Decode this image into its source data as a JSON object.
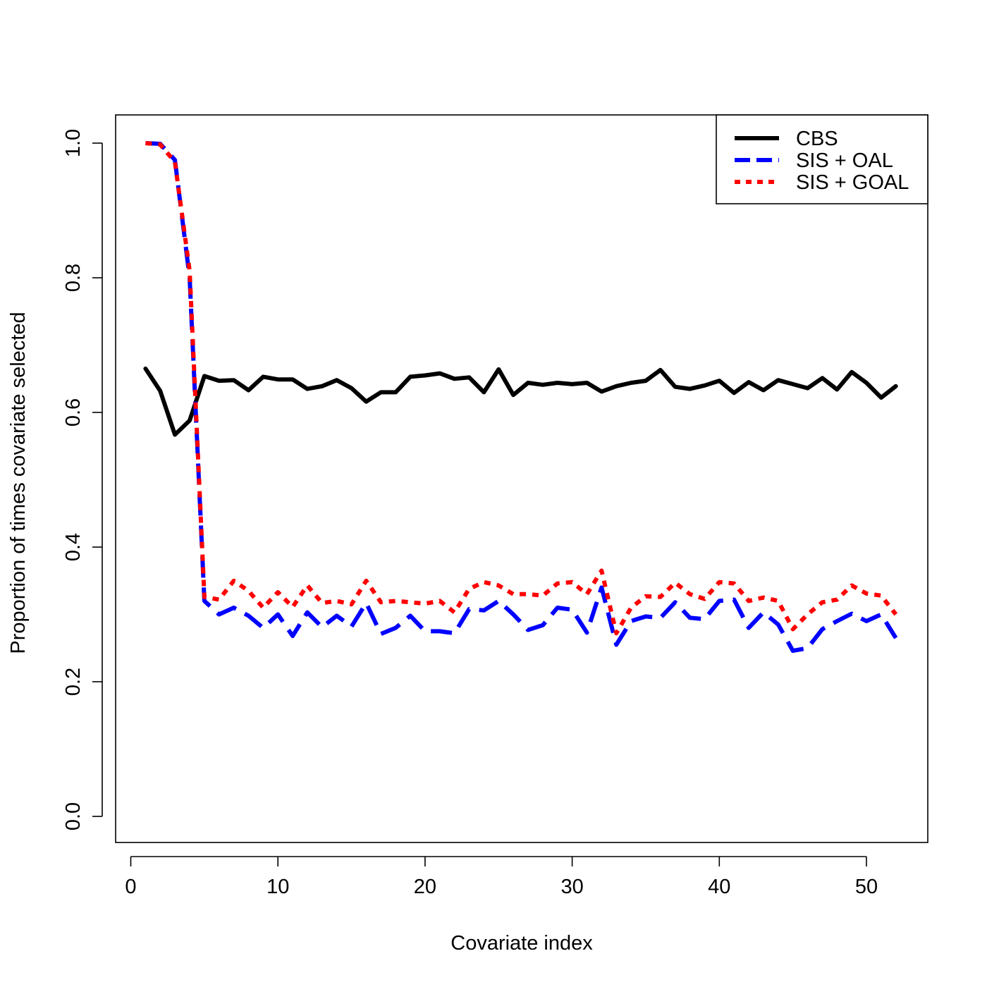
{
  "chart_data": {
    "type": "line",
    "title": "",
    "xlabel": "Covariate index",
    "ylabel": "Proportion of times covariate selected",
    "xlim": [
      0,
      53
    ],
    "ylim": [
      0,
      1.05
    ],
    "x_ticks": [
      "0",
      "10",
      "20",
      "30",
      "40",
      "50"
    ],
    "y_ticks": [
      "0.0",
      "0.2",
      "0.4",
      "0.6",
      "0.8",
      "1.0"
    ],
    "grid": false,
    "legend_position": "top-right",
    "x": [
      1,
      2,
      3,
      4,
      5,
      6,
      7,
      8,
      9,
      10,
      11,
      12,
      13,
      14,
      15,
      16,
      17,
      18,
      19,
      20,
      21,
      22,
      23,
      24,
      25,
      26,
      27,
      28,
      29,
      30,
      31,
      32,
      33,
      34,
      35,
      36,
      37,
      38,
      39,
      40,
      41,
      42,
      43,
      44,
      45,
      46,
      47,
      48,
      49,
      50,
      51,
      52
    ],
    "series": [
      {
        "name": "CBS",
        "color": "#000000",
        "style": "solid",
        "values": [
          0.665,
          0.632,
          0.567,
          0.588,
          0.654,
          0.647,
          0.648,
          0.633,
          0.653,
          0.649,
          0.649,
          0.635,
          0.639,
          0.648,
          0.636,
          0.616,
          0.63,
          0.63,
          0.653,
          0.655,
          0.658,
          0.65,
          0.652,
          0.63,
          0.664,
          0.626,
          0.644,
          0.641,
          0.644,
          0.642,
          0.644,
          0.631,
          0.639,
          0.644,
          0.647,
          0.663,
          0.638,
          0.635,
          0.64,
          0.647,
          0.629,
          0.645,
          0.633,
          0.648,
          0.642,
          0.636,
          0.651,
          0.634,
          0.66,
          0.644,
          0.622,
          0.639
        ]
      },
      {
        "name": "SIS + OAL",
        "color": "#0000ff",
        "style": "dashed",
        "values": [
          1.0,
          0.999,
          0.975,
          0.8,
          0.32,
          0.3,
          0.31,
          0.298,
          0.28,
          0.3,
          0.268,
          0.303,
          0.281,
          0.298,
          0.282,
          0.317,
          0.271,
          0.28,
          0.298,
          0.275,
          0.275,
          0.272,
          0.308,
          0.306,
          0.32,
          0.3,
          0.277,
          0.284,
          0.31,
          0.307,
          0.273,
          0.34,
          0.255,
          0.29,
          0.297,
          0.295,
          0.318,
          0.295,
          0.293,
          0.32,
          0.322,
          0.28,
          0.303,
          0.285,
          0.246,
          0.25,
          0.278,
          0.29,
          0.301,
          0.29,
          0.3,
          0.265
        ]
      },
      {
        "name": "SIS + GOAL",
        "color": "#ff0000",
        "style": "dotted",
        "values": [
          1.0,
          0.998,
          0.972,
          0.81,
          0.326,
          0.322,
          0.35,
          0.335,
          0.31,
          0.333,
          0.311,
          0.343,
          0.317,
          0.32,
          0.315,
          0.35,
          0.318,
          0.32,
          0.318,
          0.316,
          0.32,
          0.303,
          0.338,
          0.348,
          0.343,
          0.33,
          0.33,
          0.328,
          0.346,
          0.348,
          0.33,
          0.365,
          0.272,
          0.31,
          0.327,
          0.326,
          0.347,
          0.33,
          0.323,
          0.348,
          0.346,
          0.32,
          0.325,
          0.32,
          0.278,
          0.3,
          0.318,
          0.322,
          0.343,
          0.331,
          0.328,
          0.3
        ]
      }
    ]
  }
}
